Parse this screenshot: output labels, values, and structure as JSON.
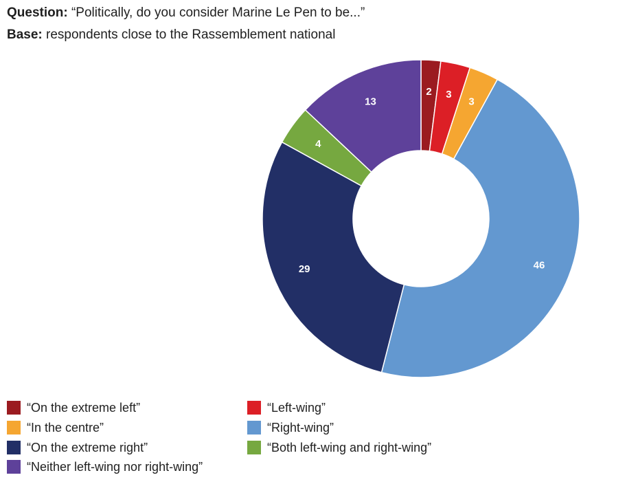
{
  "header": {
    "question_label": "Question:",
    "question_text": "“Politically, do you consider Marine Le Pen to be...”",
    "base_label": "Base:",
    "base_text": "respondents close to the Rassemblement national"
  },
  "chart_data": {
    "type": "pie",
    "donut": true,
    "title": "",
    "legend_placement": "bottom-left",
    "slices": [
      {
        "label": "“On the extreme left”",
        "value": 2,
        "color": "#9B1B20"
      },
      {
        "label": "“Left-wing”",
        "value": 3,
        "color": "#DC1F26"
      },
      {
        "label": "“In the centre”",
        "value": 3,
        "color": "#F5A631"
      },
      {
        "label": "“Right-wing”",
        "value": 46,
        "color": "#6398D0"
      },
      {
        "label": "“On the extreme right”",
        "value": 29,
        "color": "#222F66"
      },
      {
        "label": "“Both left-wing and right-wing”",
        "value": 4,
        "color": "#76A840"
      },
      {
        "label": "“Neither left-wing nor right-wing”",
        "value": 13,
        "color": "#5E419A"
      }
    ],
    "legend_order": [
      0,
      1,
      2,
      3,
      4,
      5,
      6
    ]
  }
}
